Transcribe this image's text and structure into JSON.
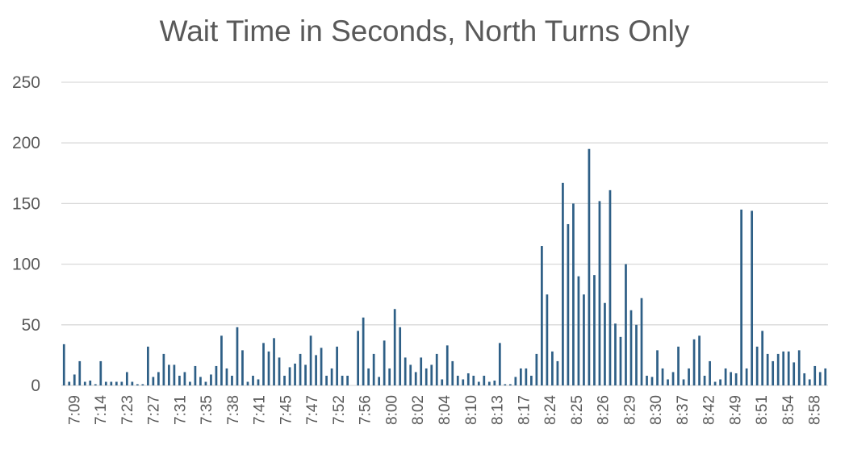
{
  "chart_data": {
    "type": "bar",
    "title": "Wait Time in Seconds, North Turns Only",
    "xlabel": "",
    "ylabel": "",
    "ylim": [
      0,
      250
    ],
    "yticks": [
      0,
      50,
      100,
      150,
      200,
      250
    ],
    "grid": true,
    "colors": {
      "bar": "#2e5f86",
      "grid": "#d9d9d9",
      "text": "#595959"
    },
    "x_tick_labels": [
      "7:09",
      "7:14",
      "7:23",
      "7:27",
      "7:31",
      "7:35",
      "7:38",
      "7:41",
      "7:45",
      "7:47",
      "7:52",
      "7:56",
      "8:00",
      "8:02",
      "8:04",
      "8:10",
      "8:13",
      "8:17",
      "8:24",
      "8:25",
      "8:26",
      "8:29",
      "8:30",
      "8:37",
      "8:42",
      "8:49",
      "8:51",
      "8:54",
      "8:58"
    ],
    "values": [
      34,
      3,
      9,
      20,
      3,
      4,
      1,
      20,
      3,
      3,
      3,
      3,
      11,
      3,
      1,
      1,
      32,
      7,
      11,
      26,
      17,
      17,
      8,
      11,
      3,
      16,
      7,
      3,
      9,
      16,
      41,
      14,
      8,
      48,
      29,
      3,
      8,
      5,
      35,
      28,
      39,
      23,
      8,
      15,
      18,
      26,
      17,
      41,
      25,
      31,
      8,
      14,
      32,
      8,
      8,
      0,
      45,
      56,
      14,
      26,
      7,
      37,
      14,
      63,
      48,
      23,
      17,
      11,
      23,
      14,
      17,
      26,
      5,
      33,
      20,
      8,
      5,
      10,
      8,
      3,
      8,
      3,
      4,
      35,
      1,
      1,
      7,
      14,
      14,
      8,
      26,
      115,
      75,
      28,
      20,
      167,
      133,
      150,
      90,
      75,
      195,
      91,
      152,
      68,
      161,
      51,
      40,
      100,
      62,
      50,
      72,
      8,
      7,
      29,
      14,
      5,
      11,
      32,
      5,
      14,
      38,
      41,
      8,
      20,
      3,
      5,
      14,
      11,
      10,
      145,
      14,
      144,
      32,
      45,
      26,
      20,
      26,
      28,
      28,
      19,
      29,
      10,
      5,
      16,
      11,
      14
    ]
  }
}
